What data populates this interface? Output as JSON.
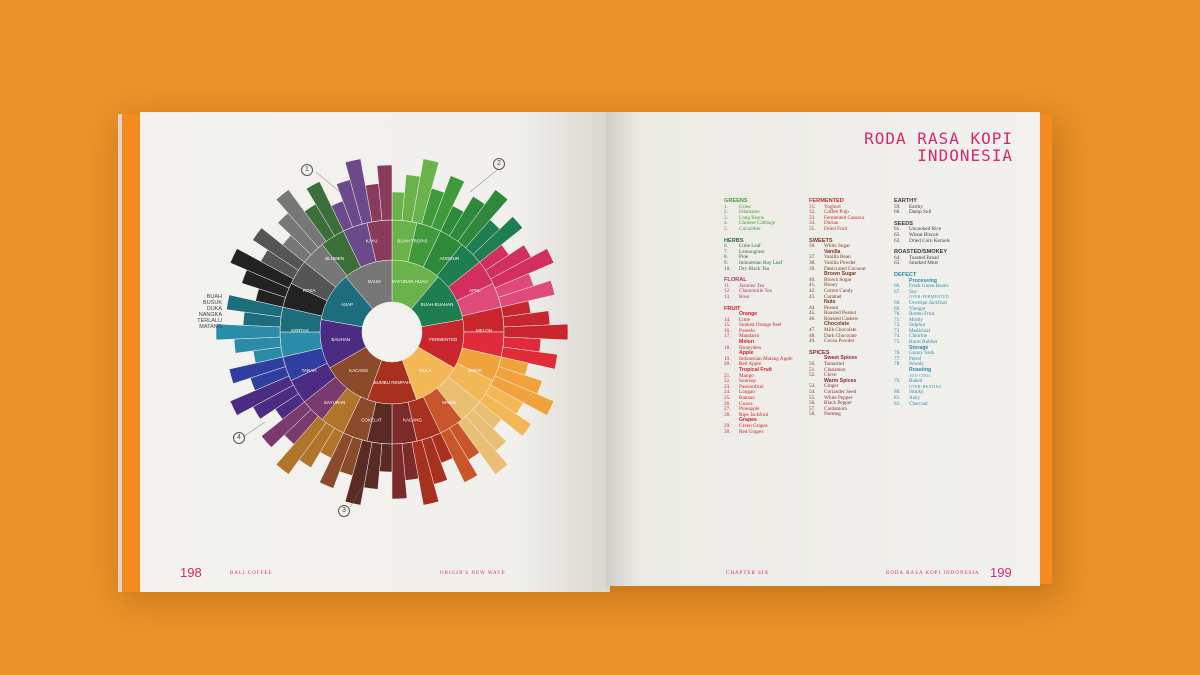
{
  "left_page": {
    "folio": "198",
    "running_head_left": "BALI COFFEE",
    "running_head_right": "ORIGIN'S NEW WAVE",
    "callouts": [
      "1",
      "2",
      "3",
      "4"
    ],
    "side_note": [
      "BUAH",
      "BUSUK",
      "DUKA",
      "NANGKA",
      "TERLALU",
      "MATANG"
    ],
    "wheel_inner": [
      "SAYURAN HIJAU",
      "BUAH-BUAHAN",
      "FERMENTED",
      "GULA",
      "BUMBU REMPAH",
      "KACANG",
      "BAUHAN",
      "ASAP",
      "DAUN"
    ],
    "wheel_outer": [
      "BUAH TROPIS",
      "ANGGUR",
      "APEL",
      "MELON",
      "JERUK",
      "MANIS",
      "KACANG",
      "COKELAT",
      "SAYURAN",
      "TANAH",
      "KERTAS",
      "ROSA",
      "BLUMEN",
      "KAYU"
    ]
  },
  "right_page": {
    "folio": "199",
    "running_head_left": "CHAPTER SIX",
    "running_head_right": "RODA RASA KOPI INDONESIA",
    "title_line1": "RODA RASA KOPI",
    "title_line2": "INDONESIA",
    "columns": [
      {
        "sections": [
          {
            "title": "GREENS",
            "color": "#4a9b3a",
            "items": [
              [
                "1.",
                "Grass"
              ],
              [
                "2.",
                "Edamame"
              ],
              [
                "3.",
                "Long Beans"
              ],
              [
                "4.",
                "Chinese Cabbage"
              ],
              [
                "5.",
                "Cucumber"
              ]
            ]
          },
          {
            "title": "HERBS",
            "color": "#2f6b32",
            "items": [
              [
                "6.",
                "Lime Leaf"
              ],
              [
                "7.",
                "Lemongrass"
              ],
              [
                "8.",
                "Pine"
              ],
              [
                "9.",
                "Indonesian Bay Leaf"
              ],
              [
                "10.",
                "Dry Black Tea"
              ]
            ]
          },
          {
            "title": "FLORAL",
            "color": "#a33a6e",
            "items": [
              [
                "11.",
                "Jasmine Tea"
              ],
              [
                "12.",
                "Chamomile Tea"
              ],
              [
                "13.",
                "Rose"
              ]
            ]
          },
          {
            "title": "FRUIT",
            "color": "#c8252c",
            "items": [
              [
                "",
                "Orange"
              ],
              [
                "14.",
                "Lime"
              ],
              [
                "15.",
                "Sunkist Orange Peel"
              ],
              [
                "16.",
                "Pomelo"
              ],
              [
                "17.",
                "Mandarin"
              ],
              [
                "",
                "Melon"
              ],
              [
                "18.",
                "Honeydew"
              ],
              [
                "",
                "Apple"
              ],
              [
                "19.",
                "Indonesian Malang Apple"
              ],
              [
                "20.",
                "Red Apple"
              ],
              [
                "",
                "Tropical Fruit"
              ],
              [
                "21.",
                "Mango"
              ],
              [
                "22.",
                "Soursop"
              ],
              [
                "23.",
                "Passionfruit"
              ],
              [
                "24.",
                "Longan"
              ],
              [
                "25.",
                "Banana"
              ],
              [
                "26.",
                "Guava"
              ],
              [
                "27.",
                "Pineapple"
              ],
              [
                "28.",
                "Ripe Jackfruit"
              ],
              [
                "",
                "Grapes"
              ],
              [
                "29.",
                "Green Grapes"
              ],
              [
                "30.",
                "Red Grapes"
              ]
            ]
          }
        ]
      },
      {
        "sections": [
          {
            "title": "FERMENTED",
            "color": "#b5342a",
            "items": [
              [
                "31.",
                "Yoghurt"
              ],
              [
                "32.",
                "Coffee Pulp"
              ],
              [
                "33.",
                "Fermented Cassava"
              ],
              [
                "34.",
                "Durian"
              ],
              [
                "35.",
                "Dried Fruit"
              ]
            ]
          },
          {
            "title": "SWEETS",
            "color": "#7a3a1e",
            "items": [
              [
                "36.",
                "White Sugar"
              ],
              [
                "",
                "Vanilla"
              ],
              [
                "37.",
                "Vanilla Bean"
              ],
              [
                "38.",
                "Vanilla Powder"
              ],
              [
                "39.",
                "Desiccated Coconut"
              ],
              [
                "",
                "Brown Sugar"
              ],
              [
                "40.",
                "Brown Sugar"
              ],
              [
                "41.",
                "Honey"
              ],
              [
                "42.",
                "Cotton Candy"
              ],
              [
                "43.",
                "Caramel"
              ],
              [
                "",
                "Nuts"
              ],
              [
                "44.",
                "Peanut"
              ],
              [
                "45.",
                "Roasted Peanut"
              ],
              [
                "46.",
                "Roasted Cashew"
              ],
              [
                "",
                "Chocolate"
              ],
              [
                "47.",
                "Milk Chocolate"
              ],
              [
                "48.",
                "Dark Chocolate"
              ],
              [
                "49.",
                "Cocoa Powder"
              ]
            ]
          },
          {
            "title": "SPICES",
            "color": "#8a2a3a",
            "items": [
              [
                "",
                "Sweet Spices"
              ],
              [
                "50.",
                "Tamarind"
              ],
              [
                "51.",
                "Cinnamon"
              ],
              [
                "52.",
                "Clove"
              ],
              [
                "",
                "Warm Spices"
              ],
              [
                "53.",
                "Ginger"
              ],
              [
                "54.",
                "Coriander Seed"
              ],
              [
                "55.",
                "White Pepper"
              ],
              [
                "56.",
                "Black Pepper"
              ],
              [
                "57.",
                "Cardamom"
              ],
              [
                "58.",
                "Nutmeg"
              ]
            ]
          }
        ]
      },
      {
        "sections": [
          {
            "title": "EARTHY",
            "color": "#3a3a3a",
            "items": [
              [
                "59.",
                "Earthy"
              ],
              [
                "60.",
                "Damp Soil"
              ]
            ]
          },
          {
            "title": "SEEDS",
            "color": "#3a3a3a",
            "items": [
              [
                "61.",
                "Uncooked Rice"
              ],
              [
                "62.",
                "Wheat Biscuit"
              ],
              [
                "63.",
                "Dried Corn Kernels"
              ]
            ]
          },
          {
            "title": "ROASTED/SMOKEY",
            "color": "#3a3a3a",
            "items": [
              [
                "64.",
                "Toasted Bread"
              ],
              [
                "65.",
                "Smoked Meat"
              ]
            ]
          },
          {
            "title": "DEFECT",
            "color": "#2a8ca8",
            "items": [
              [
                "",
                "Processing"
              ],
              [
                "66.",
                "Fresh Green Beans"
              ],
              [
                "67.",
                "Soy"
              ],
              [
                "",
                "over-fermented"
              ],
              [
                "68.",
                "Overripe Jackfruit"
              ],
              [
                "69.",
                "Vinegar"
              ],
              [
                "70.",
                "Rotten Fruit"
              ],
              [
                "71.",
                "Moldy"
              ],
              [
                "72.",
                "Sulphur"
              ],
              [
                "73.",
                "Medicinal"
              ],
              [
                "74.",
                "Chlorine"
              ],
              [
                "75.",
                "Burnt Rubber"
              ],
              [
                "",
                "Storage"
              ],
              [
                "76.",
                "Gunny Sack"
              ],
              [
                "77.",
                "Petrol"
              ],
              [
                "78.",
                "Woody"
              ],
              [
                "",
                "Roasting"
              ],
              [
                "",
                "too cool"
              ],
              [
                "79.",
                "Baked"
              ],
              [
                "",
                "over-heating"
              ],
              [
                "80.",
                "Smoky"
              ],
              [
                "81.",
                "Ashy"
              ],
              [
                "82.",
                "Charcoal"
              ]
            ]
          }
        ]
      }
    ]
  }
}
